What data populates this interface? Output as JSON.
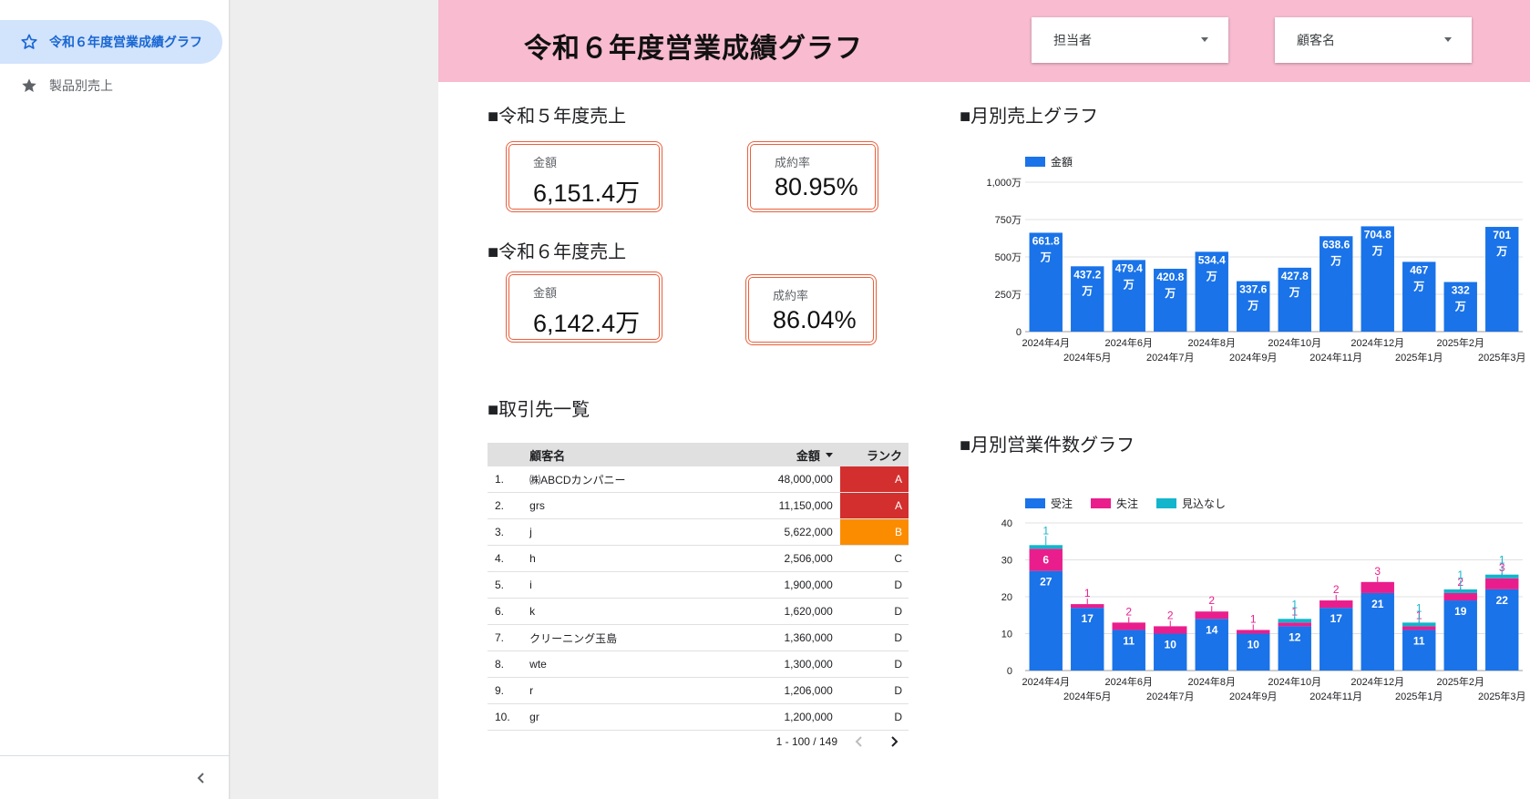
{
  "sidebar": {
    "items": [
      {
        "label": "令和６年度営業成績グラフ",
        "active": true
      },
      {
        "label": "製品別売上",
        "active": false
      }
    ]
  },
  "header": {
    "title": "令和６年度営業成績グラフ",
    "filters": [
      {
        "label": "担当者"
      },
      {
        "label": "顧客名"
      }
    ],
    "background": "#f8bbd0"
  },
  "r5": {
    "title": "■令和５年度売上",
    "amount_label": "金額",
    "amount_value": "6,151.4万",
    "rate_label": "成約率",
    "rate_value": "80.95%"
  },
  "r6": {
    "title": "■令和６年度売上",
    "amount_label": "金額",
    "amount_value": "6,142.4万",
    "rate_label": "成約率",
    "rate_value": "86.04%"
  },
  "clients": {
    "title": "■取引先一覧",
    "columns": [
      "顧客名",
      "金額",
      "ランク"
    ],
    "rows": [
      {
        "idx": "1.",
        "name": "㈱ABCDカンパニー",
        "amount": "48,000,000",
        "rank": "A"
      },
      {
        "idx": "2.",
        "name": "grs",
        "amount": "11,150,000",
        "rank": "A"
      },
      {
        "idx": "3.",
        "name": "j",
        "amount": "5,622,000",
        "rank": "B"
      },
      {
        "idx": "4.",
        "name": "h",
        "amount": "2,506,000",
        "rank": "C"
      },
      {
        "idx": "5.",
        "name": "i",
        "amount": "1,900,000",
        "rank": "D"
      },
      {
        "idx": "6.",
        "name": "k",
        "amount": "1,620,000",
        "rank": "D"
      },
      {
        "idx": "7.",
        "name": "クリーニング玉島",
        "amount": "1,360,000",
        "rank": "D"
      },
      {
        "idx": "8.",
        "name": "wte",
        "amount": "1,300,000",
        "rank": "D"
      },
      {
        "idx": "9.",
        "name": "r",
        "amount": "1,206,000",
        "rank": "D"
      },
      {
        "idx": "10.",
        "name": "gr",
        "amount": "1,200,000",
        "rank": "D"
      }
    ],
    "pagination": "1 - 100 / 149",
    "rank_colors": {
      "A": "#d32f2f",
      "B": "#fb8c00"
    }
  },
  "chart_titles": {
    "sales": "■月別売上グラフ",
    "count": "■月別営業件数グラフ"
  },
  "chart_data": [
    {
      "type": "bar",
      "legend": [
        "金額"
      ],
      "legend_position": "top-left",
      "categories": [
        "2024年4月",
        "2024年5月",
        "2024年6月",
        "2024年7月",
        "2024年8月",
        "2024年9月",
        "2024年10月",
        "2024年11月",
        "2024年12月",
        "2025年1月",
        "2025年2月",
        "2025年3月"
      ],
      "values": [
        661.8,
        437.2,
        479.4,
        420.8,
        534.4,
        337.6,
        427.8,
        638.6,
        704.8,
        467,
        332,
        701
      ],
      "value_labels": [
        "661.8",
        "437.2",
        "479.4",
        "420.8",
        "534.4",
        "337.6",
        "427.8",
        "638.6",
        "704.8",
        "467",
        "332",
        "701"
      ],
      "unit_label": "万",
      "yticks": [
        "0",
        "250万",
        "500万",
        "750万",
        "1,000万"
      ],
      "ylim": [
        0,
        1000
      ],
      "grid": true,
      "color": "#1a73e8"
    },
    {
      "type": "bar",
      "stacked": true,
      "legend_position": "top-left",
      "categories": [
        "2024年4月",
        "2024年5月",
        "2024年6月",
        "2024年7月",
        "2024年8月",
        "2024年9月",
        "2024年10月",
        "2024年11月",
        "2024年12月",
        "2025年1月",
        "2025年2月",
        "2025年3月"
      ],
      "series": [
        {
          "name": "受注",
          "color": "#1a73e8",
          "values": [
            27,
            17,
            11,
            10,
            14,
            10,
            12,
            17,
            21,
            11,
            19,
            22
          ]
        },
        {
          "name": "失注",
          "color": "#e91e8c",
          "values": [
            6,
            1,
            2,
            2,
            2,
            1,
            1,
            2,
            3,
            1,
            2,
            3
          ]
        },
        {
          "name": "見込なし",
          "color": "#12b5cb",
          "values": [
            1,
            0,
            0,
            0,
            0,
            0,
            1,
            0,
            0,
            1,
            1,
            1
          ]
        }
      ],
      "yticks": [
        "0",
        "10",
        "20",
        "30",
        "40"
      ],
      "ylim": [
        0,
        40
      ],
      "grid": true
    }
  ]
}
